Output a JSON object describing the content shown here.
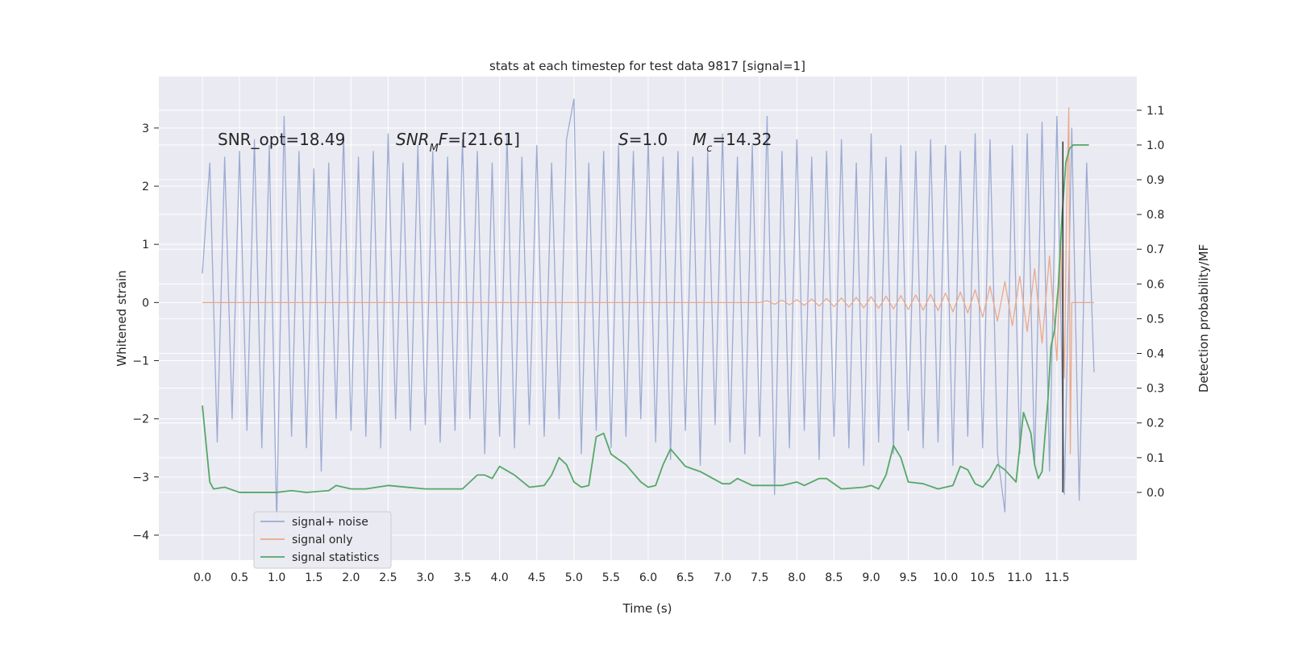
{
  "chart_data": {
    "type": "line",
    "title": "stats at each timestep for test data 9817 [signal=1]",
    "xlabel": "Time (s)",
    "ylabel": "Whitened strain",
    "y2label": "Detection probability/MF",
    "xlim": [
      -0.586,
      12.575
    ],
    "ylim": [
      -4.43,
      3.885
    ],
    "y2lim": [
      -0.195,
      1.197
    ],
    "xticks": [
      {
        "value": 0,
        "label": "0.0"
      },
      {
        "value": 0.5,
        "label": "0.5"
      },
      {
        "value": 1,
        "label": "1.0"
      },
      {
        "value": 1.5,
        "label": "1.5"
      },
      {
        "value": 2,
        "label": "2.0"
      },
      {
        "value": 2.5,
        "label": "2.5"
      },
      {
        "value": 3,
        "label": "3.0"
      },
      {
        "value": 3.5,
        "label": "3.5"
      },
      {
        "value": 4,
        "label": "4.0"
      },
      {
        "value": 4.5,
        "label": "4.5"
      },
      {
        "value": 5,
        "label": "5.0"
      },
      {
        "value": 5.5,
        "label": "5.5"
      },
      {
        "value": 6,
        "label": "6.0"
      },
      {
        "value": 6.5,
        "label": "6.5"
      },
      {
        "value": 7,
        "label": "7.0"
      },
      {
        "value": 7.5,
        "label": "7.5"
      },
      {
        "value": 8,
        "label": "8.0"
      },
      {
        "value": 8.5,
        "label": "8.5"
      },
      {
        "value": 9,
        "label": "9.0"
      },
      {
        "value": 9.5,
        "label": "9.5"
      },
      {
        "value": 10,
        "label": "10.0"
      },
      {
        "value": 10.5,
        "label": "10.5"
      },
      {
        "value": 11,
        "label": "11.0"
      },
      {
        "value": 11.5,
        "label": "11.5"
      }
    ],
    "yticks": [
      {
        "value": -4,
        "label": "−4"
      },
      {
        "value": -3,
        "label": "−3"
      },
      {
        "value": -2,
        "label": "−2"
      },
      {
        "value": -1,
        "label": "−1"
      },
      0,
      1,
      2,
      3
    ],
    "y2ticks": [
      {
        "value": 0,
        "label": "0.0"
      },
      {
        "value": 0.1,
        "label": "0.1"
      },
      {
        "value": 0.2,
        "label": "0.2"
      },
      {
        "value": 0.3,
        "label": "0.3"
      },
      {
        "value": 0.4,
        "label": "0.4"
      },
      {
        "value": 0.5,
        "label": "0.5"
      },
      {
        "value": 0.6,
        "label": "0.6"
      },
      {
        "value": 0.7,
        "label": "0.7"
      },
      {
        "value": 0.8,
        "label": "0.8"
      },
      {
        "value": 0.9,
        "label": "0.9"
      },
      {
        "value": 1,
        "label": "1.0"
      },
      {
        "value": 1.1,
        "label": "1.1"
      }
    ],
    "grid": true,
    "legend": "lower left",
    "series": [
      {
        "name": "signal+ noise",
        "color": "#9babd2",
        "x": [
          0,
          0.1,
          0.2,
          0.3,
          0.4,
          0.5,
          0.6,
          0.7,
          0.8,
          0.9,
          1,
          1.1,
          1.2,
          1.3,
          1.4,
          1.5,
          1.6,
          1.7,
          1.8,
          1.9,
          2,
          2.1,
          2.2,
          2.3,
          2.4,
          2.5,
          2.6,
          2.7,
          2.8,
          2.9,
          3,
          3.1,
          3.2,
          3.3,
          3.4,
          3.5,
          3.6,
          3.7,
          3.8,
          3.9,
          4,
          4.1,
          4.2,
          4.3,
          4.4,
          4.5,
          4.6,
          4.7,
          4.8,
          4.9,
          5,
          5.1,
          5.2,
          5.3,
          5.4,
          5.5,
          5.6,
          5.7,
          5.8,
          5.9,
          6,
          6.1,
          6.2,
          6.3,
          6.4,
          6.5,
          6.6,
          6.7,
          6.8,
          6.9,
          7,
          7.1,
          7.2,
          7.3,
          7.4,
          7.5,
          7.6,
          7.7,
          7.8,
          7.9,
          8,
          8.1,
          8.2,
          8.3,
          8.4,
          8.5,
          8.6,
          8.7,
          8.8,
          8.9,
          9,
          9.1,
          9.2,
          9.3,
          9.4,
          9.5,
          9.6,
          9.7,
          9.8,
          9.9,
          10,
          10.1,
          10.2,
          10.3,
          10.4,
          10.5,
          10.6,
          10.7,
          10.8,
          10.9,
          11,
          11.1,
          11.2,
          11.3,
          11.4,
          11.5,
          11.6,
          11.7,
          11.8,
          11.9,
          12
        ],
        "values": [
          0.5,
          2.4,
          -2.4,
          2.5,
          -2.0,
          2.6,
          -2.2,
          2.8,
          -2.5,
          2.7,
          -3.8,
          3.2,
          -2.3,
          2.6,
          -2.5,
          2.3,
          -2.9,
          2.4,
          -2.0,
          2.9,
          -2.2,
          2.5,
          -2.3,
          2.6,
          -2.5,
          2.9,
          -2.0,
          2.4,
          -2.2,
          2.7,
          -2.1,
          2.6,
          -2.4,
          2.5,
          -2.2,
          2.8,
          -2.0,
          2.6,
          -2.6,
          2.4,
          -2.3,
          2.9,
          -2.5,
          2.5,
          -2.1,
          2.7,
          -2.3,
          2.4,
          -2.0,
          2.8,
          3.5,
          -2.6,
          2.4,
          -2.2,
          2.6,
          -2.5,
          2.7,
          -2.3,
          2.6,
          -2.0,
          2.8,
          -2.4,
          2.5,
          -2.7,
          2.6,
          -2.2,
          2.5,
          -2.8,
          2.6,
          -2.1,
          2.9,
          -2.4,
          2.5,
          -2.6,
          2.7,
          -2.3,
          3.2,
          -3.3,
          2.6,
          -2.5,
          2.8,
          -2.2,
          2.5,
          -2.7,
          2.6,
          -2.3,
          2.8,
          -2.5,
          2.4,
          -2.8,
          2.9,
          -2.4,
          2.5,
          -2.6,
          2.7,
          -2.2,
          2.6,
          -2.5,
          2.8,
          -2.4,
          2.7,
          -2.8,
          2.6,
          -2.3,
          2.9,
          -2.5,
          2.8,
          -2.6,
          -3.6,
          2.7,
          -2.6,
          2.9,
          -2.8,
          3.1,
          -2.9,
          3.2,
          -3.3,
          3.0,
          -3.4,
          2.4,
          -1.2
        ]
      },
      {
        "name": "signal only",
        "color": "#eaa98a",
        "x": [
          0,
          7.5,
          7.6,
          7.7,
          7.8,
          7.9,
          8,
          8.1,
          8.2,
          8.3,
          8.4,
          8.5,
          8.6,
          8.7,
          8.8,
          8.9,
          9,
          9.1,
          9.2,
          9.3,
          9.4,
          9.5,
          9.6,
          9.7,
          9.8,
          9.9,
          10,
          10.1,
          10.2,
          10.3,
          10.4,
          10.5,
          10.6,
          10.7,
          10.8,
          10.9,
          11,
          11.1,
          11.2,
          11.3,
          11.4,
          11.5,
          11.55,
          11.6,
          11.63,
          11.66,
          11.68,
          11.7,
          12
        ],
        "values": [
          0,
          0,
          0.03,
          -0.03,
          0.04,
          -0.04,
          0.05,
          -0.05,
          0.06,
          -0.06,
          0.07,
          -0.07,
          0.08,
          -0.08,
          0.09,
          -0.09,
          0.1,
          -0.1,
          0.11,
          -0.11,
          0.12,
          -0.12,
          0.13,
          -0.13,
          0.14,
          -0.14,
          0.16,
          -0.16,
          0.18,
          -0.18,
          0.22,
          -0.25,
          0.28,
          -0.32,
          0.36,
          -0.4,
          0.45,
          -0.5,
          0.58,
          -0.7,
          0.8,
          -1.0,
          1.1,
          -1.3,
          1.6,
          3.35,
          -2.6,
          0,
          0
        ]
      },
      {
        "name": "signal statistics",
        "color": "#55a868",
        "axis": "y2",
        "x": [
          0,
          0.1,
          0.15,
          0.3,
          0.5,
          1,
          1.2,
          1.4,
          1.7,
          1.8,
          2,
          2.2,
          2.5,
          3,
          3.5,
          3.7,
          3.8,
          3.9,
          4,
          4.2,
          4.4,
          4.6,
          4.7,
          4.8,
          4.9,
          5,
          5.1,
          5.2,
          5.3,
          5.4,
          5.5,
          5.7,
          5.9,
          6,
          6.1,
          6.2,
          6.3,
          6.4,
          6.5,
          6.7,
          7,
          7.1,
          7.2,
          7.4,
          7.6,
          7.8,
          8,
          8.1,
          8.3,
          8.4,
          8.6,
          8.9,
          9,
          9.1,
          9.2,
          9.3,
          9.4,
          9.5,
          9.7,
          9.9,
          10.1,
          10.2,
          10.3,
          10.4,
          10.5,
          10.6,
          10.7,
          10.8,
          10.95,
          11.05,
          11.15,
          11.2,
          11.25,
          11.3,
          11.38,
          11.42,
          11.47,
          11.52,
          11.57,
          11.62,
          11.67,
          11.72,
          11.93
        ],
        "values": [
          0.25,
          0.03,
          0.01,
          0.015,
          0.0,
          0.0,
          0.005,
          0.0,
          0.005,
          0.02,
          0.01,
          0.01,
          0.02,
          0.01,
          0.01,
          0.05,
          0.05,
          0.04,
          0.075,
          0.05,
          0.015,
          0.02,
          0.05,
          0.1,
          0.08,
          0.03,
          0.015,
          0.02,
          0.16,
          0.17,
          0.11,
          0.08,
          0.03,
          0.015,
          0.02,
          0.08,
          0.125,
          0.1,
          0.075,
          0.06,
          0.025,
          0.025,
          0.04,
          0.02,
          0.02,
          0.02,
          0.03,
          0.02,
          0.04,
          0.04,
          0.01,
          0.015,
          0.02,
          0.01,
          0.05,
          0.135,
          0.1,
          0.03,
          0.025,
          0.01,
          0.02,
          0.075,
          0.065,
          0.025,
          0.015,
          0.04,
          0.08,
          0.065,
          0.03,
          0.23,
          0.17,
          0.08,
          0.04,
          0.06,
          0.27,
          0.42,
          0.47,
          0.6,
          0.8,
          0.95,
          0.99,
          1.0,
          1.0
        ]
      }
    ],
    "vlines": [
      {
        "x": 11.58,
        "ymin": 0,
        "ymax": 1.01,
        "axis": "y2",
        "color": "#333333"
      }
    ],
    "annotations": [
      [
        {
          "text": "SNR_opt=18.49"
        }
      ],
      [
        {
          "text": "SNR",
          "style": "italic"
        },
        {
          "text": "M",
          "style": "sub"
        },
        {
          "text": "F",
          "style": "italic"
        },
        {
          "text": "=[21.61]"
        }
      ],
      [
        {
          "text": "S",
          "style": "italic"
        },
        {
          "text": "=1.0"
        }
      ],
      [
        {
          "text": "M",
          "style": "italic"
        },
        {
          "text": "c",
          "style": "sub"
        },
        {
          "text": "=14.32"
        }
      ]
    ]
  }
}
